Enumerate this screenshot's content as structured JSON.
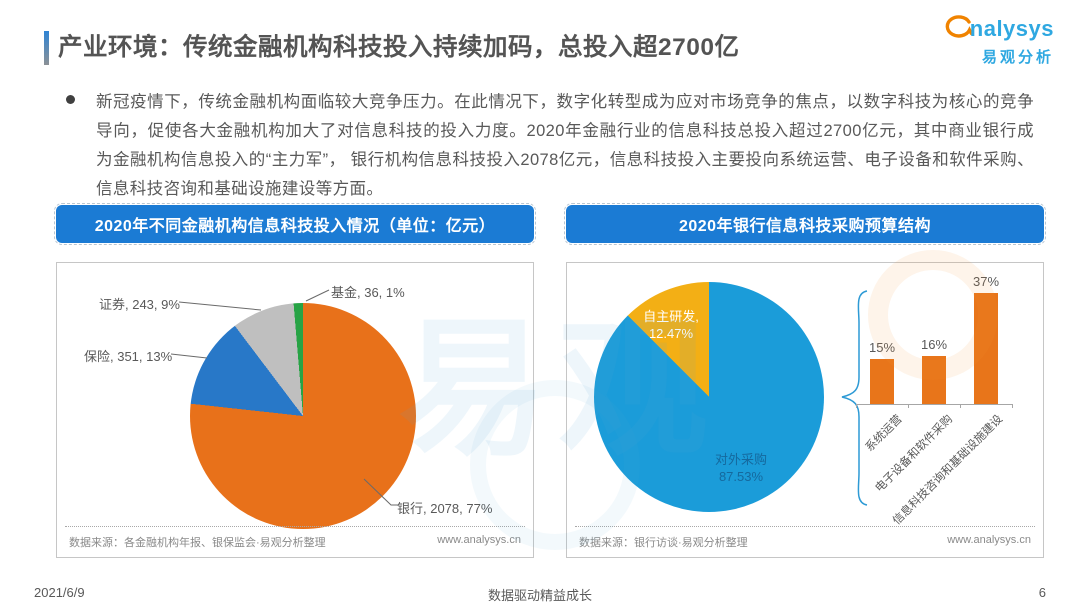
{
  "page": {
    "date": "2021/6/9",
    "slogan": "数据驱动精益成长",
    "page_number": "6",
    "watermark": "易观"
  },
  "header": {
    "title": "产业环境：传统金融机构科技投入持续加码，总投入超2700亿",
    "logo": {
      "brand": "nalysys",
      "brand_cn": "易观分析",
      "swirl_color": "#F08300",
      "brand_color": "#2FA8E1"
    }
  },
  "intro": {
    "bullet_text": "新冠疫情下，传统金融机构面临较大竞争压力。在此情况下，数字化转型成为应对市场竞争的焦点，以数字科技为核心的竞争导向，促使各大金融机构加大了对信息科技的投入力度。2020年金融行业的信息科技总投入超过2700亿元，其中商业银行成为金融机构信息投入的“主力军”， 银行机构信息科技投入2078亿元，信息科技投入主要投向系统运营、电子设备和软件采购、信息科技咨询和基础设施建设等方面。"
  },
  "chart_data": [
    {
      "type": "pie",
      "title": "2020年不同金融机构信息科技投入情况（单位：亿元）",
      "unit": "亿元",
      "labels": [
        "银行",
        "保险",
        "证券",
        "基金"
      ],
      "values": [
        2078,
        351,
        243,
        36
      ],
      "percent_labels": [
        "77%",
        "13%",
        "9%",
        "1%"
      ],
      "colors": [
        "#E8711A",
        "#2878C8",
        "#BFBFBF",
        "#27A345"
      ],
      "callouts": [
        "银行, 2078, 77%",
        "保险, 351, 13%",
        "证券, 243, 9%",
        "基金, 36, 1%"
      ],
      "legend_position": "callouts",
      "source": "数据来源：各金融机构年报、银保监会·易观分析整理",
      "website": "www.analysys.cn"
    },
    {
      "type": "pie",
      "title": "2020年银行信息科技采购预算结构",
      "labels": [
        "对外采购",
        "自主研发"
      ],
      "values": [
        87.53,
        12.47
      ],
      "colors": [
        "#1B9CD9",
        "#F3AF15"
      ],
      "slice_labels": [
        [
          "对外采购",
          "87.53%"
        ],
        [
          "自主研发,",
          "12.47%"
        ]
      ],
      "source": "数据来源：银行访谈·易观分析整理",
      "website": "www.analysys.cn",
      "bar_breakdown": {
        "type": "bar",
        "categories": [
          "系统运营",
          "电子设备和软件采购",
          "信息科技咨询和基础设施建设"
        ],
        "values": [
          15,
          16,
          37
        ],
        "value_labels": [
          "15%",
          "16%",
          "37%"
        ],
        "color": "#E8751A",
        "ylim": [
          0,
          40
        ],
        "grid": false
      }
    }
  ]
}
